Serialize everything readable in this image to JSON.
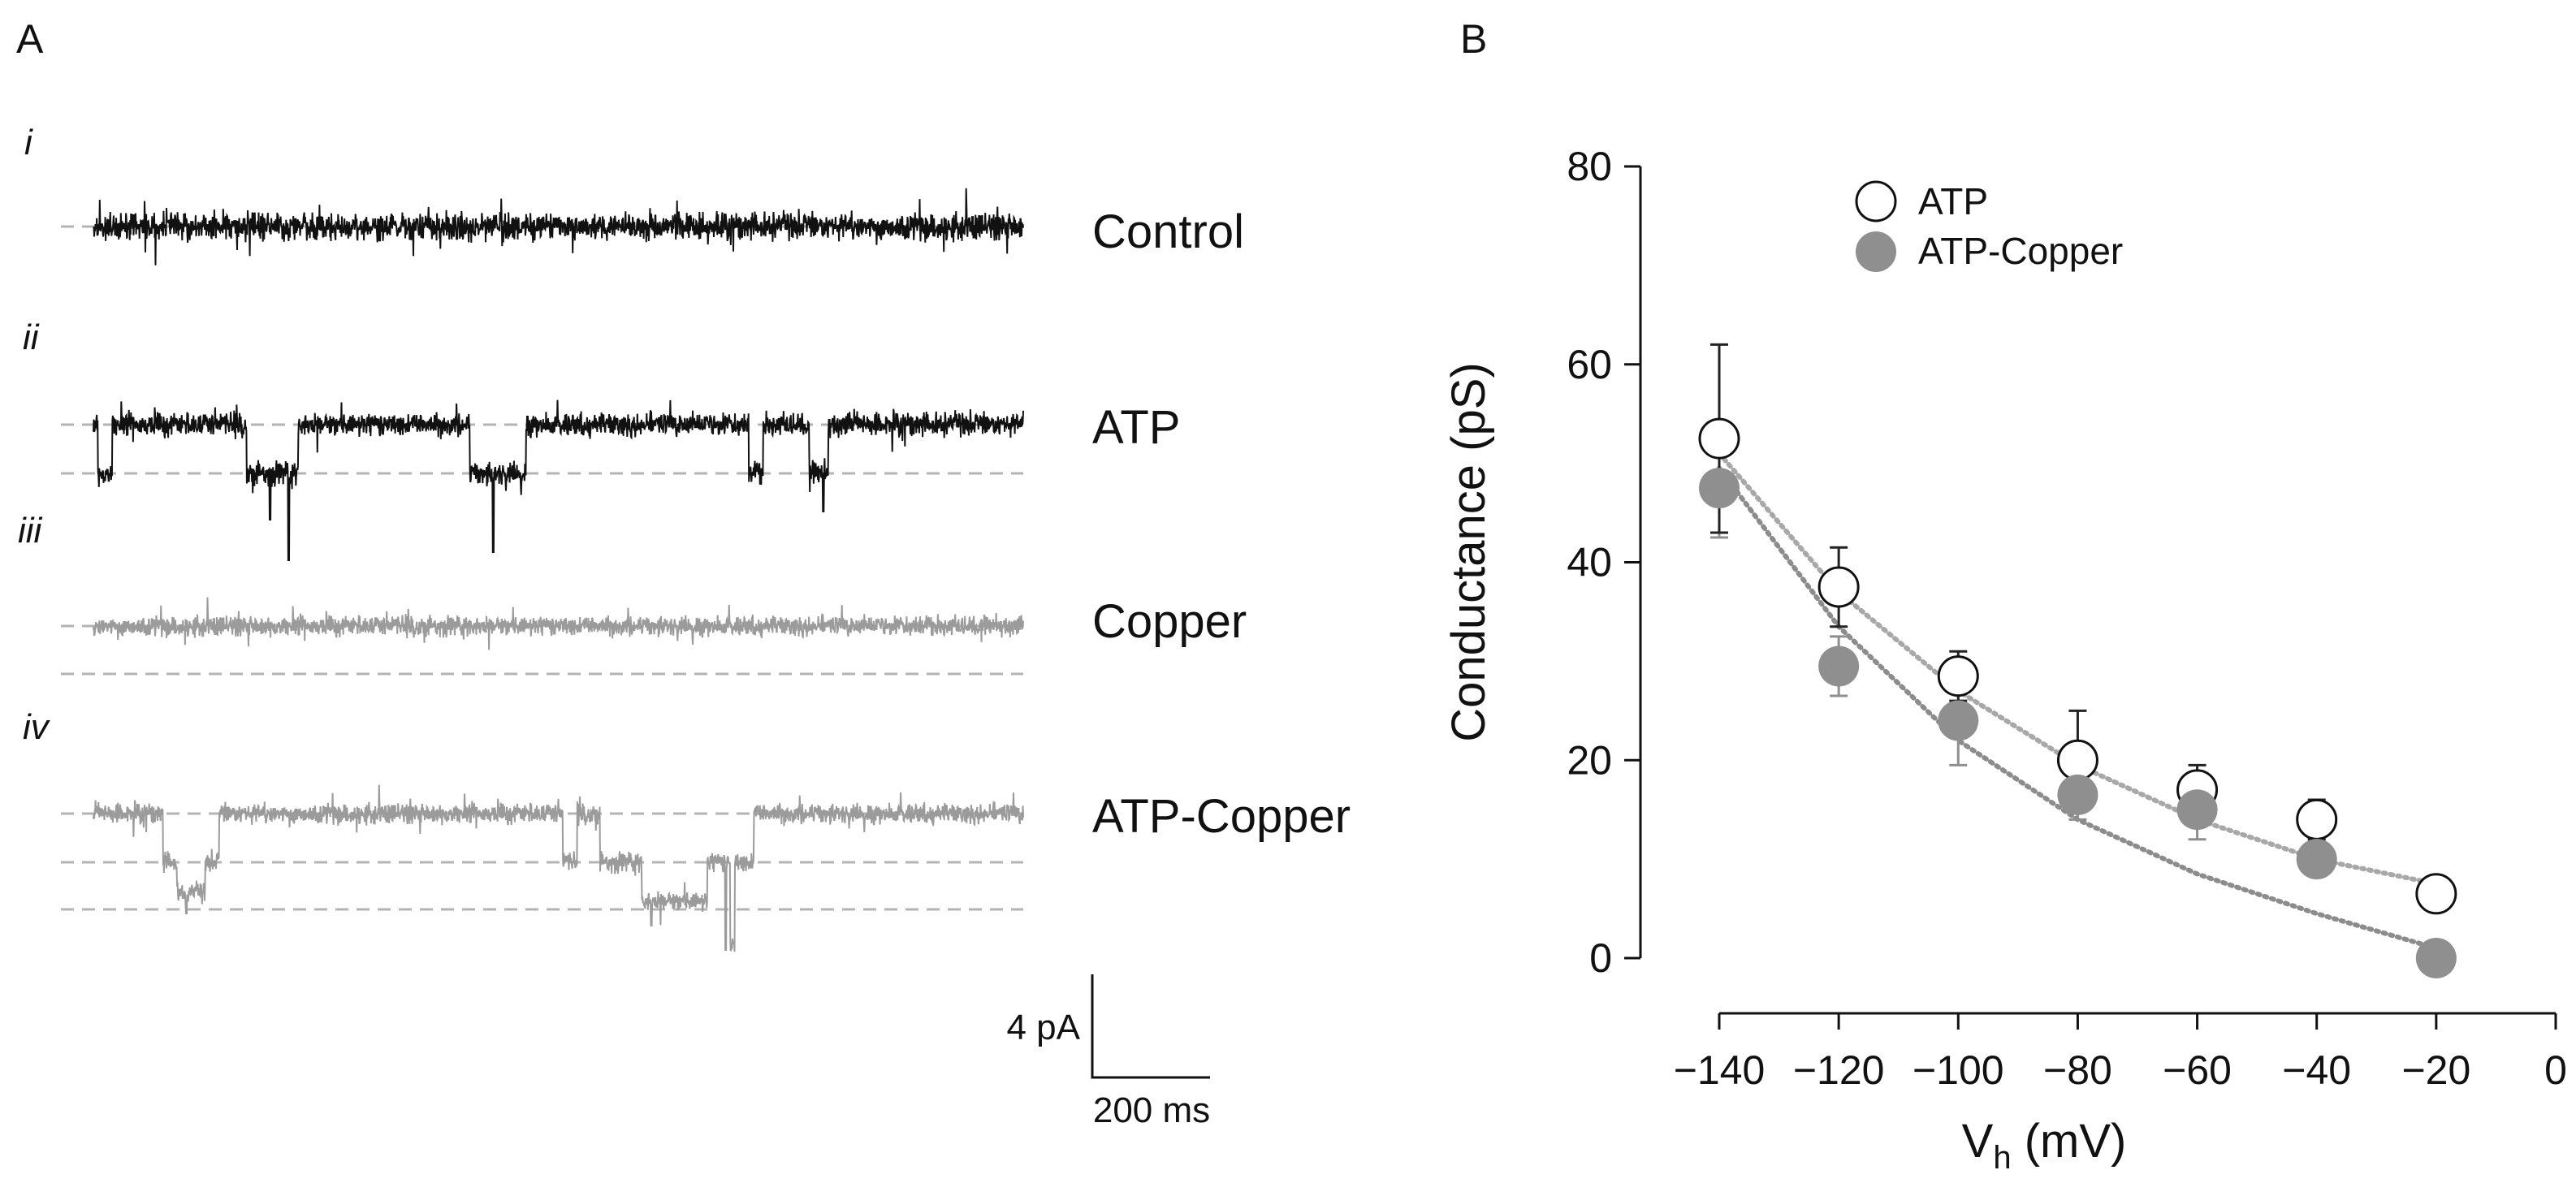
{
  "panels": {
    "a": "A",
    "b": "B"
  },
  "colors": {
    "black_trace": "#111111",
    "grey_trace": "#9b9b9b",
    "dash": "#b4b4b4",
    "axis": "#111111"
  },
  "traces": [
    {
      "roman": "i",
      "label": "Control",
      "color": "#111111",
      "levels": 1
    },
    {
      "roman": "ii",
      "label": "ATP",
      "color": "#111111",
      "levels": 2
    },
    {
      "roman": "iii",
      "label": "Copper",
      "color": "#9b9b9b",
      "levels": 2
    },
    {
      "roman": "iv",
      "label": "ATP-Copper",
      "color": "#9b9b9b",
      "levels": 3
    }
  ],
  "scale_bar": {
    "current": "4 pA",
    "time": "200 ms"
  },
  "chart_data": {
    "type": "scatter",
    "xlabel": "V",
    "xlabel_sub": "h",
    "xlabel_unit": " (mV)",
    "ylabel": "Conductance (pS)",
    "xlim": [
      -140,
      0
    ],
    "ylim": [
      0,
      80
    ],
    "x_ticks": [
      -140,
      -120,
      -100,
      -80,
      -60,
      -40,
      -20,
      0
    ],
    "x_tick_labels": [
      "−140",
      "−120",
      "−100",
      "−80",
      "−60",
      "−40",
      "−20",
      "0"
    ],
    "y_ticks": [
      0,
      20,
      40,
      60,
      80
    ],
    "y_tick_labels": [
      "0",
      "20",
      "40",
      "60",
      "80"
    ],
    "x": [
      -140,
      -120,
      -100,
      -80,
      -60,
      -40,
      -20
    ],
    "series": [
      {
        "name": "ATP",
        "marker": "open-circle",
        "values": [
          52.5,
          37.5,
          28.5,
          20,
          17,
          14,
          6.5
        ],
        "error": [
          9.5,
          4,
          2.5,
          5,
          2.5,
          2,
          0
        ],
        "fit": [
          51,
          37,
          27,
          19.5,
          14,
          10,
          7.5
        ]
      },
      {
        "name": "ATP-Copper",
        "marker": "filled-circle",
        "values": [
          47.5,
          29.5,
          24,
          16.5,
          15,
          10,
          0
        ],
        "error": [
          5,
          3,
          4.5,
          2.5,
          3,
          1,
          0
        ],
        "fit": [
          49.5,
          33.5,
          22,
          14,
          8.5,
          4.5,
          1
        ]
      }
    ]
  }
}
